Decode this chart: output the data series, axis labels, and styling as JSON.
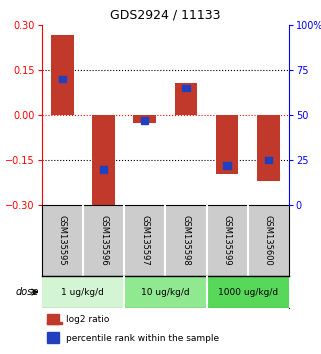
{
  "title": "GDS2924 / 11133",
  "samples": [
    "GSM135595",
    "GSM135596",
    "GSM135597",
    "GSM135598",
    "GSM135599",
    "GSM135600"
  ],
  "log2_ratio": [
    0.265,
    -0.305,
    -0.028,
    0.105,
    -0.195,
    -0.22
  ],
  "percentile_rank": [
    70,
    20,
    47,
    65,
    22,
    25
  ],
  "ylim_left": [
    -0.3,
    0.3
  ],
  "ylim_right": [
    0,
    100
  ],
  "yticks_left": [
    -0.3,
    -0.15,
    0,
    0.15,
    0.3
  ],
  "yticks_right": [
    0,
    25,
    50,
    75,
    100
  ],
  "bar_color": "#c0392b",
  "blue_color": "#2040c0",
  "dose_groups": [
    {
      "label": "1 ug/kg/d",
      "samples": [
        0,
        1
      ],
      "color": "#d4f5d4"
    },
    {
      "label": "10 ug/kg/d",
      "samples": [
        2,
        3
      ],
      "color": "#90e890"
    },
    {
      "label": "1000 ug/kg/d",
      "samples": [
        4,
        5
      ],
      "color": "#58d858"
    }
  ],
  "sample_bg": "#cccccc",
  "label_log2": "log2 ratio",
  "label_pct": "percentile rank within the sample",
  "dose_label": "dose"
}
